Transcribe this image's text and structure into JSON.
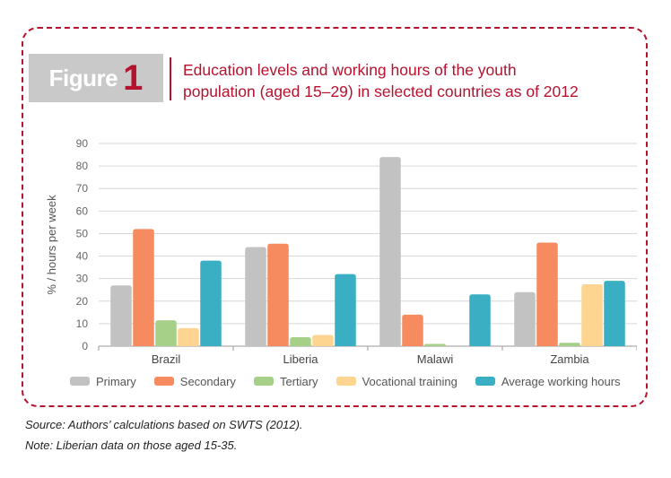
{
  "figure": {
    "word": "Figure",
    "number": "1",
    "title_line1": "Education levels and working hours of the youth",
    "title_line2": "population (aged 15–29) in selected countries as of 2012"
  },
  "colors": {
    "frame": "#b5122e",
    "tag_bg": "#c9c9c9",
    "Primary": "#c2c2c2",
    "Secondary": "#f58b5f",
    "Tertiary": "#a6cf87",
    "Vocational training": "#fdd490",
    "Average working hours": "#3aafc4"
  },
  "chart_data": {
    "type": "bar",
    "title": "Education levels and working hours of the youth population (aged 15–29) in selected countries as of 2012",
    "xlabel": "",
    "ylabel": "% / hours per week",
    "ylim": [
      0,
      90
    ],
    "yticks": [
      0,
      10,
      20,
      30,
      40,
      50,
      60,
      70,
      80,
      90
    ],
    "grid": "horizontal",
    "legend_position": "bottom",
    "categories": [
      "Brazil",
      "Liberia",
      "Malawi",
      "Zambia"
    ],
    "series": [
      {
        "name": "Primary",
        "values": [
          27,
          44,
          84,
          24
        ]
      },
      {
        "name": "Secondary",
        "values": [
          52,
          45.5,
          14,
          46
        ]
      },
      {
        "name": "Tertiary",
        "values": [
          11.5,
          4,
          1,
          1.5
        ]
      },
      {
        "name": "Vocational training",
        "values": [
          8,
          5,
          0,
          27.5
        ]
      },
      {
        "name": "Average working hours",
        "values": [
          38,
          32,
          23,
          29
        ]
      }
    ]
  },
  "footer": {
    "source": "Source: Authors’ calculations based on SWTS (2012).",
    "note": "Note: Liberian data on those aged 15-35."
  }
}
